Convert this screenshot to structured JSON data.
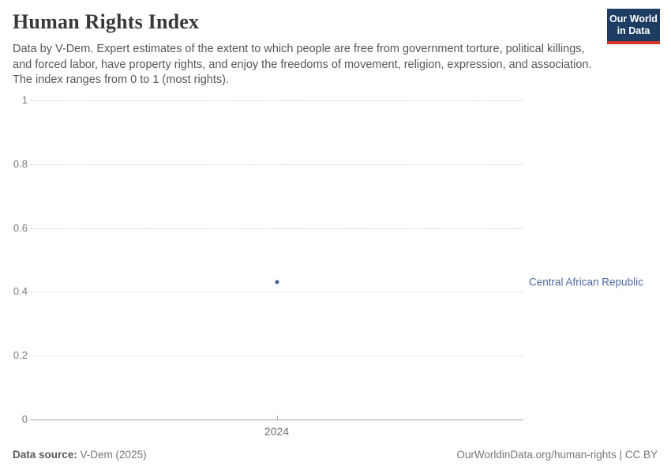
{
  "header": {
    "title": "Human Rights Index",
    "subtitle": "Data by V-Dem. Expert estimates of the extent to which people are free from government torture, political killings, and forced labor, have property rights, and enjoy the freedoms of movement, religion, expression, and association. The index ranges from 0 to 1 (most rights).",
    "logo": {
      "line1": "Our World",
      "line2": "in Data",
      "bg_color": "#1d3d63",
      "stripe_color": "#d8352a"
    }
  },
  "chart_data": {
    "type": "scatter",
    "title": "Human Rights Index",
    "x": [
      2024
    ],
    "xtick_labels": [
      "2024"
    ],
    "series": [
      {
        "name": "Central African Republic",
        "values": [
          0.43
        ],
        "color": "#3d5c8f"
      }
    ],
    "xlabel": "",
    "ylabel": "",
    "ylim": [
      0,
      1
    ],
    "yticks": [
      0,
      0.2,
      0.4,
      0.6,
      0.8,
      1
    ],
    "ytick_labels": [
      "0",
      "0.2",
      "0.4",
      "0.6",
      "0.8",
      "1"
    ],
    "grid": "horizontal-dashed",
    "legend_position": "right-of-plot",
    "entity_label_color": "#4c6aa0"
  },
  "footer": {
    "source_label": "Data source:",
    "source_value": "V-Dem (2025)",
    "link": "OurWorldinData.org/human-rights | CC BY"
  }
}
